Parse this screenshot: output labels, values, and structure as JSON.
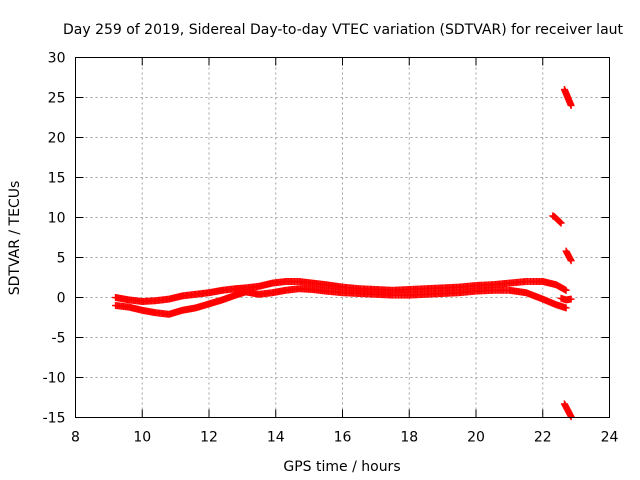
{
  "chart_data": {
    "type": "scatter",
    "title": "Day 259 of 2019, Sidereal Day-to-day VTEC variation (SDTVAR) for receiver laut",
    "xlabel": "GPS time / hours",
    "ylabel": "SDTVAR / TECUs",
    "xlim": [
      8,
      24
    ],
    "ylim": [
      -15,
      30
    ],
    "xticks": [
      8,
      10,
      12,
      14,
      16,
      18,
      20,
      22,
      24
    ],
    "yticks": [
      -15,
      -10,
      -5,
      0,
      5,
      10,
      15,
      20,
      25,
      30
    ],
    "xtick_labels": [
      "8",
      "10",
      "12",
      "14",
      "16",
      "18",
      "20",
      "22",
      "24"
    ],
    "ytick_labels": [
      "-15",
      "-10",
      "-5",
      "0",
      "5",
      "10",
      "15",
      "20",
      "25",
      "30"
    ],
    "grid": true,
    "marker": "plus",
    "color": "#ff0000",
    "series": [
      {
        "name": "main-band-upper",
        "x": [
          9.2,
          9.6,
          10.0,
          10.4,
          10.8,
          11.2,
          11.6,
          12.0,
          12.4,
          12.8,
          13.1,
          13.5,
          13.9,
          14.3,
          14.7,
          15.1,
          15.5,
          16.0,
          16.5,
          17.0,
          17.5,
          18.0,
          18.5,
          19.0,
          19.5,
          20.0,
          20.5,
          21.0,
          21.5,
          22.0,
          22.4,
          22.7
        ],
        "y": [
          0.0,
          -0.3,
          -0.5,
          -0.4,
          -0.2,
          0.2,
          0.4,
          0.6,
          0.9,
          1.1,
          1.2,
          1.4,
          1.8,
          2.0,
          2.0,
          1.8,
          1.6,
          1.3,
          1.1,
          1.0,
          0.9,
          1.0,
          1.1,
          1.2,
          1.3,
          1.5,
          1.6,
          1.8,
          2.0,
          2.0,
          1.6,
          0.9
        ]
      },
      {
        "name": "main-band-lower",
        "x": [
          9.2,
          9.6,
          10.0,
          10.4,
          10.8,
          11.2,
          11.6,
          12.0,
          12.4,
          12.8,
          13.1,
          13.5,
          13.9,
          14.3,
          14.7,
          15.1,
          15.5,
          16.0,
          16.5,
          17.0,
          17.5,
          18.0,
          18.5,
          19.0,
          19.5,
          20.0,
          20.5,
          21.0,
          21.5,
          22.0,
          22.4,
          22.7
        ],
        "y": [
          -1.0,
          -1.2,
          -1.6,
          -1.9,
          -2.1,
          -1.6,
          -1.3,
          -0.8,
          -0.3,
          0.3,
          0.7,
          0.4,
          0.6,
          0.9,
          1.1,
          1.0,
          0.8,
          0.6,
          0.5,
          0.4,
          0.3,
          0.3,
          0.4,
          0.5,
          0.6,
          0.8,
          0.9,
          0.9,
          0.6,
          -0.2,
          -0.9,
          -1.3
        ]
      },
      {
        "name": "end-track-high",
        "x": [
          22.65,
          22.7,
          22.75,
          22.8,
          22.85
        ],
        "y": [
          26.0,
          25.5,
          25.0,
          24.5,
          24.0
        ]
      },
      {
        "name": "end-track-10",
        "x": [
          22.3,
          22.35,
          22.4,
          22.45,
          22.5,
          22.55
        ],
        "y": [
          10.2,
          10.1,
          9.9,
          9.7,
          9.5,
          9.3
        ]
      },
      {
        "name": "end-track-5",
        "x": [
          22.7,
          22.75,
          22.8,
          22.85
        ],
        "y": [
          5.8,
          5.4,
          5.0,
          4.6
        ]
      },
      {
        "name": "end-track-zero",
        "x": [
          22.55,
          22.7,
          22.85
        ],
        "y": [
          -0.1,
          -0.3,
          -0.2
        ]
      },
      {
        "name": "end-track-low",
        "x": [
          22.65,
          22.7,
          22.75,
          22.8,
          22.85
        ],
        "y": [
          -13.3,
          -13.7,
          -14.1,
          -14.5,
          -14.9
        ]
      }
    ]
  }
}
